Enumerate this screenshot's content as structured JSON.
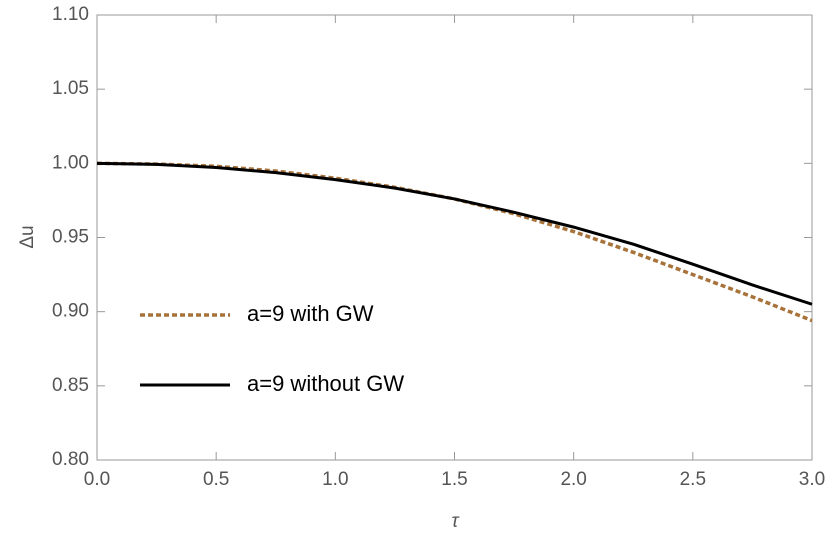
{
  "chart_data": {
    "type": "line",
    "x_label": "τ",
    "y_label": "Δu",
    "x": [
      0,
      0.25,
      0.5,
      0.75,
      1.0,
      1.25,
      1.5,
      1.75,
      2.0,
      2.25,
      2.5,
      2.75,
      3.0
    ],
    "series": [
      {
        "name": "a=9 with GW",
        "color": "#a8733a",
        "style": "dashed",
        "values": [
          1.0,
          0.9995,
          0.998,
          0.9948,
          0.99,
          0.9838,
          0.976,
          0.966,
          0.954,
          0.94,
          0.925,
          0.91,
          0.894
        ]
      },
      {
        "name": "a=9 without GW",
        "color": "#000000",
        "style": "solid",
        "values": [
          1.0,
          0.9993,
          0.9972,
          0.9937,
          0.989,
          0.9833,
          0.976,
          0.967,
          0.957,
          0.9455,
          0.932,
          0.918,
          0.905
        ]
      }
    ],
    "xlim": [
      0,
      3
    ],
    "ylim": [
      0.8,
      1.1
    ],
    "xticks": [
      {
        "value": 0,
        "label": "0.0"
      },
      0.5,
      {
        "value": 1,
        "label": "1.0"
      },
      1.5,
      {
        "value": 2,
        "label": "2.0"
      },
      2.5,
      {
        "value": 3,
        "label": "3.0"
      }
    ],
    "yticks": [
      {
        "value": 0.8,
        "label": "0.80"
      },
      0.85,
      {
        "value": 0.9,
        "label": "0.90"
      },
      0.95,
      {
        "value": 1,
        "label": "1.00"
      },
      1.05,
      {
        "value": 1.1,
        "label": "1.10"
      }
    ],
    "grid": false,
    "legend": "left"
  }
}
